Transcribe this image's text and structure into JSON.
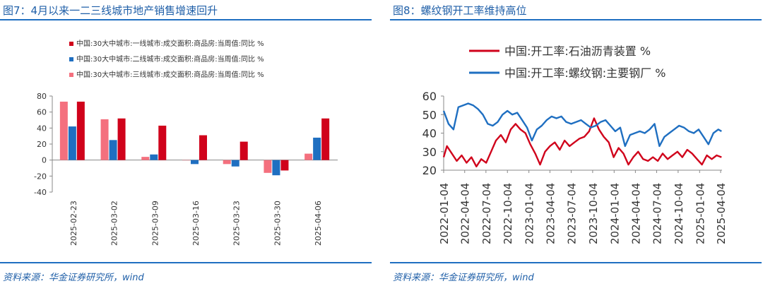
{
  "charts": [
    {
      "title": "图7：4月以来一二三线城市地产销售增速回升",
      "source": "资料来源：华金证券研究所，wind",
      "chart_data": {
        "type": "bar",
        "categories": [
          "2025-02-23",
          "2025-03-02",
          "2025-03-09",
          "2025-03-16",
          "2025-03-23",
          "2025-03-30",
          "2025-04-06"
        ],
        "series": [
          {
            "name": "中国:30大中城市:三线城市:成交面积:商品房:当周值:同比 %",
            "color": "#f4707e",
            "values": [
              73,
              51,
              4,
              0,
              -5,
              -16,
              8
            ]
          },
          {
            "name": "中国:30大中城市:二线城市:成交面积:商品房:当周值:同比 %",
            "color": "#1f6fc1",
            "values": [
              42,
              25,
              7,
              -5,
              -8,
              -19,
              28
            ]
          },
          {
            "name": "中国:30大中城市:一线城市:成交面积:商品房:当周值:同比 %",
            "color": "#d0021b",
            "values": [
              73,
              52,
              43,
              31,
              23,
              -13,
              52
            ]
          }
        ],
        "legend_order": [
          2,
          1,
          0
        ],
        "legend_position": "top",
        "ylim": [
          -40,
          80
        ],
        "yticks": [
          -40,
          -20,
          0,
          20,
          40,
          60,
          80
        ],
        "grid": false
      }
    },
    {
      "title": "图8：螺纹钢开工率维持高位",
      "source": "资料来源：华金证券研究所，wind",
      "chart_data": {
        "type": "line",
        "series": [
          {
            "name": "中国:开工率:石油沥青装置 %",
            "color": "#d0021b",
            "x": [
              "2022-01-04",
              "2022-01-18",
              "2022-02-08",
              "2022-03-01",
              "2022-03-22",
              "2022-04-12",
              "2022-05-03",
              "2022-05-24",
              "2022-06-14",
              "2022-07-05",
              "2022-07-26",
              "2022-08-16",
              "2022-09-06",
              "2022-09-27",
              "2022-10-18",
              "2022-11-08",
              "2022-11-29",
              "2022-12-20",
              "2023-01-10",
              "2023-01-31",
              "2023-02-21",
              "2023-03-14",
              "2023-04-04",
              "2023-04-25",
              "2023-05-16",
              "2023-06-06",
              "2023-06-27",
              "2023-07-18",
              "2023-08-08",
              "2023-08-29",
              "2023-09-19",
              "2023-10-10",
              "2023-10-31",
              "2023-11-21",
              "2023-12-12",
              "2024-01-02",
              "2024-01-23",
              "2024-02-13",
              "2024-03-05",
              "2024-03-26",
              "2024-04-16",
              "2024-05-07",
              "2024-05-28",
              "2024-06-18",
              "2024-07-09",
              "2024-07-30",
              "2024-08-20",
              "2024-09-10",
              "2024-10-01",
              "2024-10-22",
              "2024-11-12",
              "2024-12-03",
              "2024-12-24",
              "2025-01-14",
              "2025-02-04",
              "2025-02-25",
              "2025-03-18",
              "2025-04-08"
            ],
            "values": [
              27,
              33,
              29,
              25,
              28,
              24,
              27,
              22,
              26,
              24,
              30,
              36,
              39,
              35,
              42,
              45,
              42,
              40,
              34,
              29,
              23,
              30,
              33,
              35,
              31,
              36,
              33,
              35,
              37,
              38,
              41,
              48,
              42,
              38,
              35,
              27,
              32,
              29,
              23,
              27,
              30,
              26,
              25,
              27,
              25,
              29,
              26,
              28,
              30,
              27,
              31,
              29,
              26,
              23,
              28,
              26,
              28,
              27
            ]
          },
          {
            "name": "中国:开工率:螺纹钢:主要钢厂 %",
            "color": "#1f6fc1",
            "x": [
              "2022-01-04",
              "2022-01-25",
              "2022-02-15",
              "2022-03-08",
              "2022-03-29",
              "2022-04-19",
              "2022-05-10",
              "2022-05-31",
              "2022-06-21",
              "2022-07-12",
              "2022-08-02",
              "2022-08-23",
              "2022-09-13",
              "2022-10-04",
              "2022-10-25",
              "2022-11-15",
              "2022-12-06",
              "2022-12-27",
              "2023-01-17",
              "2023-02-07",
              "2023-02-28",
              "2023-03-21",
              "2023-04-11",
              "2023-05-02",
              "2023-05-23",
              "2023-06-13",
              "2023-07-04",
              "2023-07-25",
              "2023-08-15",
              "2023-09-05",
              "2023-09-26",
              "2023-10-17",
              "2023-11-07",
              "2023-11-28",
              "2023-12-19",
              "2024-01-09",
              "2024-01-30",
              "2024-02-20",
              "2024-03-12",
              "2024-04-02",
              "2024-04-23",
              "2024-05-14",
              "2024-06-04",
              "2024-06-25",
              "2024-07-16",
              "2024-08-06",
              "2024-08-27",
              "2024-09-17",
              "2024-10-08",
              "2024-10-29",
              "2024-11-19",
              "2024-12-10",
              "2024-12-31",
              "2025-01-21",
              "2025-02-11",
              "2025-03-04",
              "2025-03-25",
              "2025-04-08"
            ],
            "values": [
              52,
              45,
              42,
              54,
              55,
              56,
              55,
              53,
              50,
              45,
              44,
              46,
              50,
              52,
              50,
              51,
              47,
              43,
              36,
              42,
              44,
              47,
              49,
              48,
              49,
              46,
              45,
              46,
              47,
              45,
              43,
              44,
              46,
              47,
              44,
              41,
              43,
              33,
              39,
              40,
              41,
              40,
              42,
              45,
              33,
              38,
              40,
              42,
              44,
              43,
              41,
              40,
              42,
              38,
              34,
              40,
              42,
              41
            ]
          }
        ],
        "legend_position": "top",
        "ylim": [
          20,
          60
        ],
        "yticks": [
          20,
          30,
          40,
          50,
          60
        ],
        "xticks": [
          "2022-01-04",
          "2022-04-04",
          "2022-07-04",
          "2022-10-04",
          "2023-01-04",
          "2023-04-04",
          "2023-07-04",
          "2023-10-04",
          "2024-01-04",
          "2024-04-04",
          "2024-07-04",
          "2024-10-04",
          "2025-01-04",
          "2025-04-04"
        ],
        "grid": false
      }
    }
  ]
}
